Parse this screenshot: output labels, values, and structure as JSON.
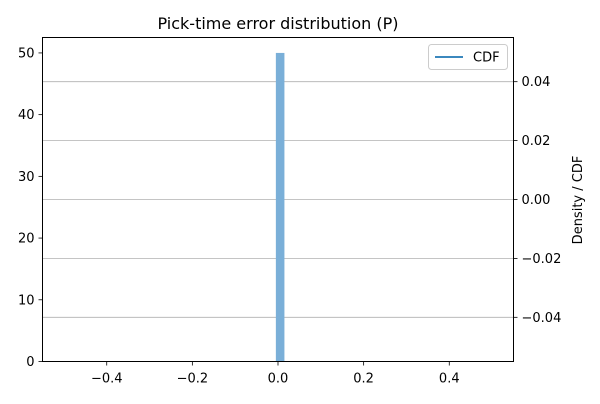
{
  "chart_data": {
    "type": "bar",
    "title": "Pick-time error distribution (P)",
    "xlabel": "",
    "ylabel_left": "",
    "ylabel_right": "Density / CDF",
    "xlim": [
      -0.55,
      0.55
    ],
    "ylim_left": [
      0,
      52.5
    ],
    "ylim_right": [
      -0.055,
      0.055
    ],
    "x_ticks": [
      -0.4,
      -0.2,
      0.0,
      0.2,
      0.4
    ],
    "x_tick_labels": [
      "−0.4",
      "−0.2",
      "0.0",
      "0.2",
      "0.4"
    ],
    "y_left_ticks": [
      0,
      10,
      20,
      30,
      40,
      50
    ],
    "y_left_tick_labels": [
      "0",
      "10",
      "20",
      "30",
      "40",
      "50"
    ],
    "y_right_ticks": [
      -0.04,
      -0.02,
      0.0,
      0.02,
      0.04
    ],
    "y_right_tick_labels": [
      "−0.04",
      "−0.02",
      "0.00",
      "0.02",
      "0.04"
    ],
    "grid": "right-axis horizontal lines",
    "legend_position": "top-right",
    "bars": [
      {
        "x0": -0.005,
        "x1": 0.015,
        "value": 50
      }
    ],
    "series": [
      {
        "name": "CDF",
        "type": "line",
        "axis": "right",
        "values": []
      }
    ],
    "colors": {
      "bar": "#7aafd8",
      "cdf_line": "#1f77b4",
      "grid": "#b0b0b0"
    }
  }
}
